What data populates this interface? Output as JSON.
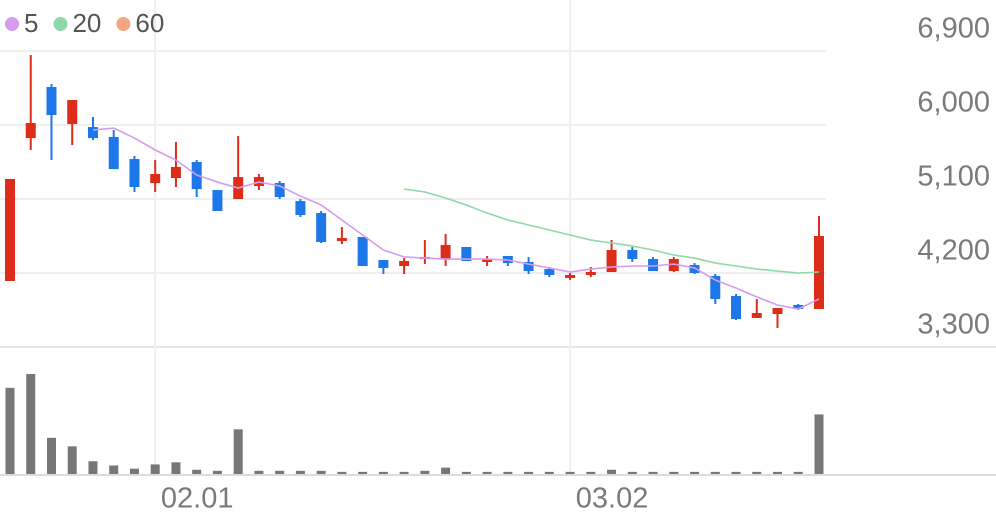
{
  "chart_data": {
    "type": "candlestick",
    "categories": [
      null,
      null,
      null,
      null,
      null,
      null,
      null,
      "02.01",
      null,
      null,
      null,
      null,
      null,
      null,
      null,
      null,
      null,
      null,
      null,
      null,
      null,
      null,
      null,
      null,
      null,
      null,
      null,
      "03.02",
      null,
      null,
      null,
      null,
      null,
      null,
      null,
      null,
      null,
      null,
      null,
      null
    ],
    "open": [
      4103,
      5841,
      6462,
      6012,
      5975,
      5854,
      5586,
      5294,
      5355,
      5550,
      5209,
      5100,
      5258,
      5294,
      5075,
      4929,
      4589,
      4638,
      4358,
      4285,
      4370,
      4370,
      4516,
      4334,
      4407,
      4334,
      4248,
      4139,
      4176,
      4212,
      4480,
      4370,
      4224,
      4297,
      4163,
      3920,
      3653,
      3701,
      3811,
      3762
    ],
    "high": [
      5343,
      6851,
      6498,
      6304,
      6097,
      5939,
      5623,
      5574,
      5793,
      5574,
      5209,
      5866,
      5404,
      5319,
      5100,
      4954,
      4759,
      4638,
      4358,
      4382,
      4601,
      4674,
      4516,
      4407,
      4407,
      4394,
      4273,
      4200,
      4273,
      4601,
      4516,
      4394,
      4394,
      4321,
      4188,
      3944,
      3884,
      3774,
      3823,
      4893
    ],
    "low": [
      4103,
      5696,
      5574,
      5756,
      5817,
      5464,
      5185,
      5185,
      5246,
      5124,
      4954,
      5100,
      5209,
      5100,
      4881,
      4565,
      4552,
      4285,
      4188,
      4188,
      4309,
      4285,
      4346,
      4285,
      4285,
      4188,
      4151,
      4115,
      4151,
      4212,
      4334,
      4224,
      4212,
      4188,
      3823,
      3628,
      3653,
      3531,
      3750,
      3762
    ],
    "close": [
      5343,
      6024,
      6121,
      6304,
      5841,
      5464,
      5246,
      5404,
      5489,
      5221,
      4954,
      5367,
      5367,
      5124,
      4905,
      4577,
      4625,
      4285,
      4261,
      4346,
      4394,
      4540,
      4346,
      4370,
      4321,
      4224,
      4176,
      4176,
      4212,
      4480,
      4370,
      4224,
      4370,
      4200,
      3884,
      3640,
      3713,
      3774,
      3762,
      4650
    ],
    "volume": [
      81,
      94,
      34,
      26,
      12,
      8,
      5,
      9,
      11,
      4,
      3,
      42,
      3,
      3,
      3,
      3,
      2,
      2,
      2,
      2,
      3,
      6,
      2,
      2,
      2,
      2,
      2,
      2,
      2,
      4,
      2,
      2,
      2,
      2,
      2,
      2,
      2,
      2,
      2,
      56
    ],
    "up_color": "#dd2c1a",
    "down_color": "#1e77e8",
    "volume_color": "#777777",
    "series": [
      {
        "name": "5",
        "color": "#d59cf0",
        "values": [
          null,
          null,
          null,
          null,
          5939,
          5963,
          5841,
          5696,
          5574,
          5392,
          5306,
          5233,
          5306,
          5258,
          5136,
          5027,
          4844,
          4662,
          4480,
          4395,
          4382,
          4370,
          4370,
          4370,
          4358,
          4309,
          4261,
          4212,
          4248,
          4273,
          4285,
          4285,
          4309,
          4261,
          4115,
          4017,
          3908,
          3811,
          3762,
          3884
        ]
      },
      {
        "name": "20",
        "color": "#8fd9a8",
        "values": [
          null,
          null,
          null,
          null,
          null,
          null,
          null,
          null,
          null,
          null,
          null,
          null,
          null,
          null,
          null,
          null,
          null,
          null,
          null,
          5221,
          5185,
          5112,
          5027,
          4929,
          4844,
          4784,
          4723,
          4662,
          4601,
          4565,
          4528,
          4480,
          4419,
          4382,
          4321,
          4285,
          4248,
          4224,
          4200,
          4212
        ]
      },
      {
        "name": "60",
        "color": "#f4a582",
        "values": [
          null,
          null,
          null,
          null,
          null,
          null,
          null,
          null,
          null,
          null,
          null,
          null,
          null,
          null,
          null,
          null,
          null,
          null,
          null,
          null,
          null,
          null,
          null,
          null,
          null,
          null,
          null,
          null,
          null,
          null,
          null,
          null,
          null,
          null,
          null,
          null,
          null,
          null,
          null,
          null
        ]
      }
    ],
    "ylim": [
      3300,
      6900
    ],
    "yticks": [
      {
        "value": 3300,
        "label": "3,300"
      },
      {
        "value": 4200,
        "label": "4,200"
      },
      {
        "value": 5100,
        "label": "5,100"
      },
      {
        "value": 6000,
        "label": "6,000"
      },
      {
        "value": 6900,
        "label": "6,900"
      }
    ],
    "grid": true
  }
}
